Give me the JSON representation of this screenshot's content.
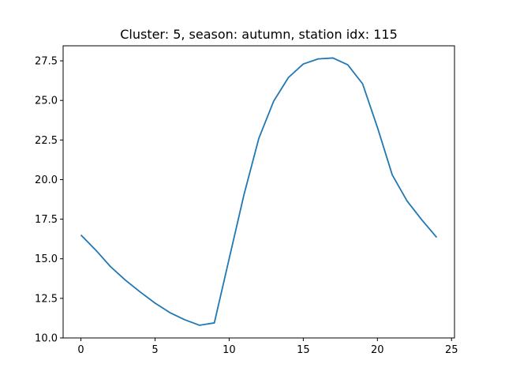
{
  "chart_data": {
    "type": "line",
    "title": "Cluster: 5, season: autumn, station idx: 115",
    "xlabel": "",
    "ylabel": "",
    "x": [
      0,
      1,
      2,
      3,
      4,
      5,
      6,
      7,
      8,
      9,
      10,
      11,
      12,
      13,
      14,
      15,
      16,
      17,
      18,
      19,
      20,
      21,
      22,
      23,
      24
    ],
    "series": [
      {
        "values": [
          16.5,
          15.55,
          14.5,
          13.65,
          12.9,
          12.2,
          11.6,
          11.15,
          10.8,
          10.95,
          15.0,
          19.05,
          22.6,
          24.95,
          26.45,
          27.3,
          27.62,
          27.68,
          27.25,
          26.05,
          23.3,
          20.3,
          18.65,
          17.45,
          16.35
        ],
        "color": "#1f77b4"
      }
    ],
    "xlim": [
      -1.2,
      25.2
    ],
    "ylim": [
      10.0,
      28.45
    ],
    "xticks": [
      0,
      5,
      10,
      15,
      20,
      25
    ],
    "yticks": [
      10.0,
      12.5,
      15.0,
      17.5,
      20.0,
      22.5,
      25.0,
      27.5
    ],
    "xtick_labels": [
      "0",
      "5",
      "10",
      "15",
      "20",
      "25"
    ],
    "ytick_labels": [
      "10.0",
      "12.5",
      "15.0",
      "17.5",
      "20.0",
      "22.5",
      "25.0",
      "27.5"
    ],
    "grid": false,
    "legend": "none"
  }
}
